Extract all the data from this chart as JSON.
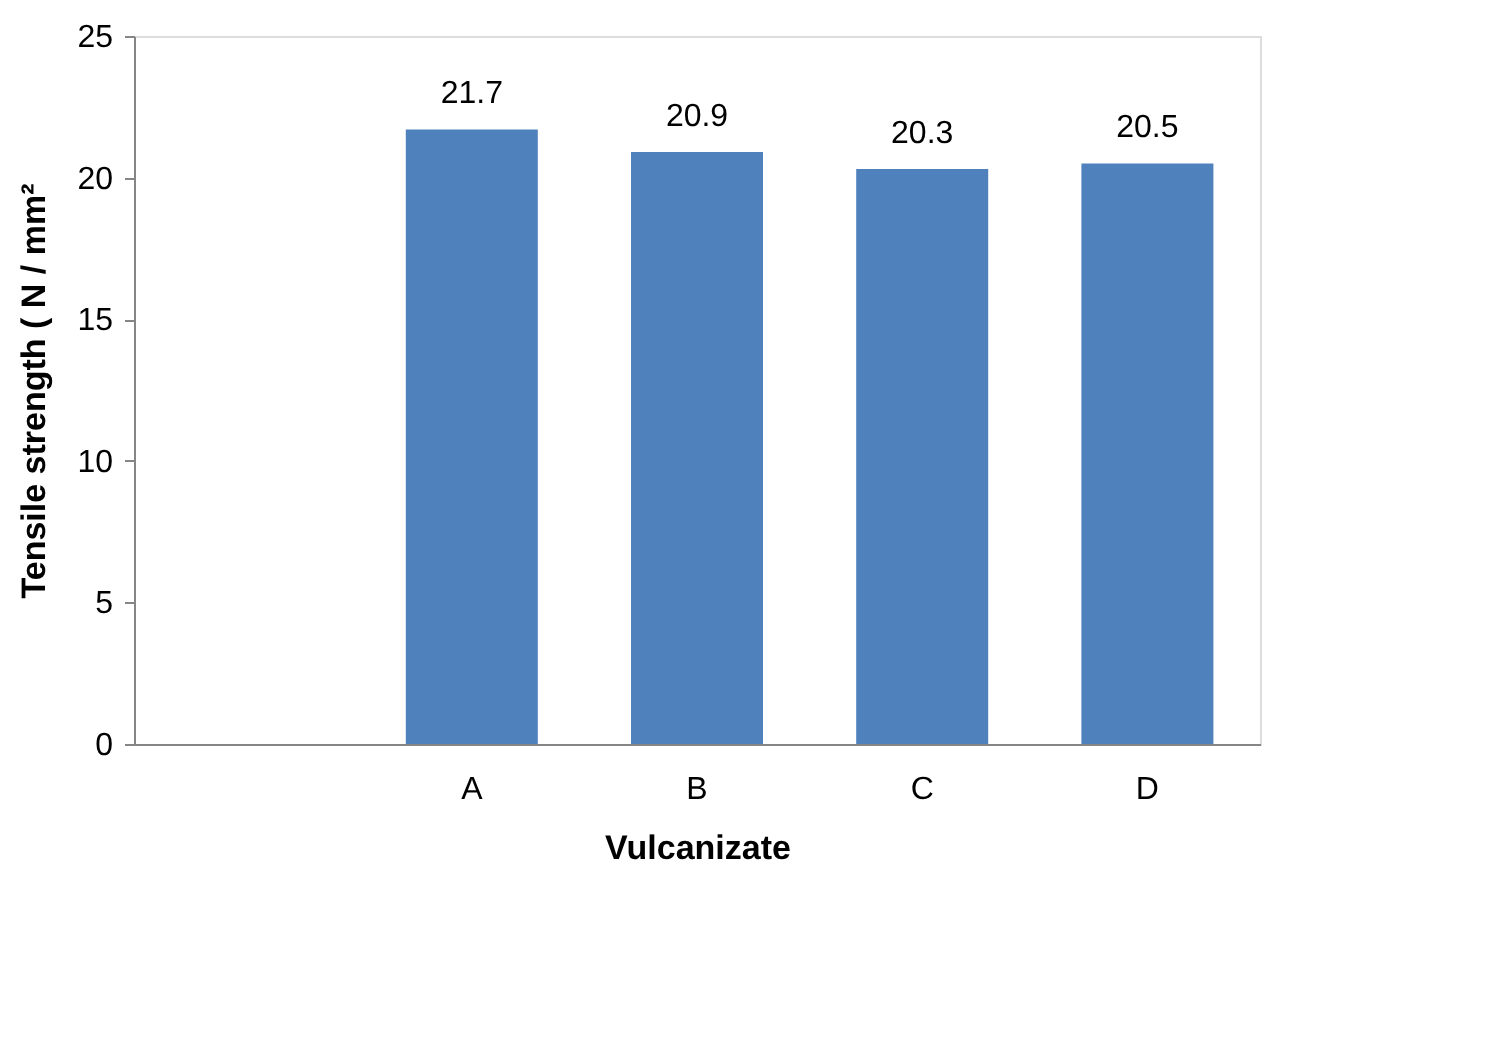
{
  "chart_data": {
    "type": "bar",
    "xlabel": "Vulcanizate",
    "ylabel": "Tensile strength ( N / mm²",
    "categories": [
      null,
      "A",
      "B",
      "C",
      "D"
    ],
    "values": [
      null,
      21.7,
      20.9,
      20.3,
      20.5
    ],
    "color": "#4f81bd",
    "ylim": [
      0,
      25
    ],
    "yticks": [
      0,
      5,
      10,
      15,
      20,
      25
    ],
    "data_labels": true,
    "grid": false
  }
}
